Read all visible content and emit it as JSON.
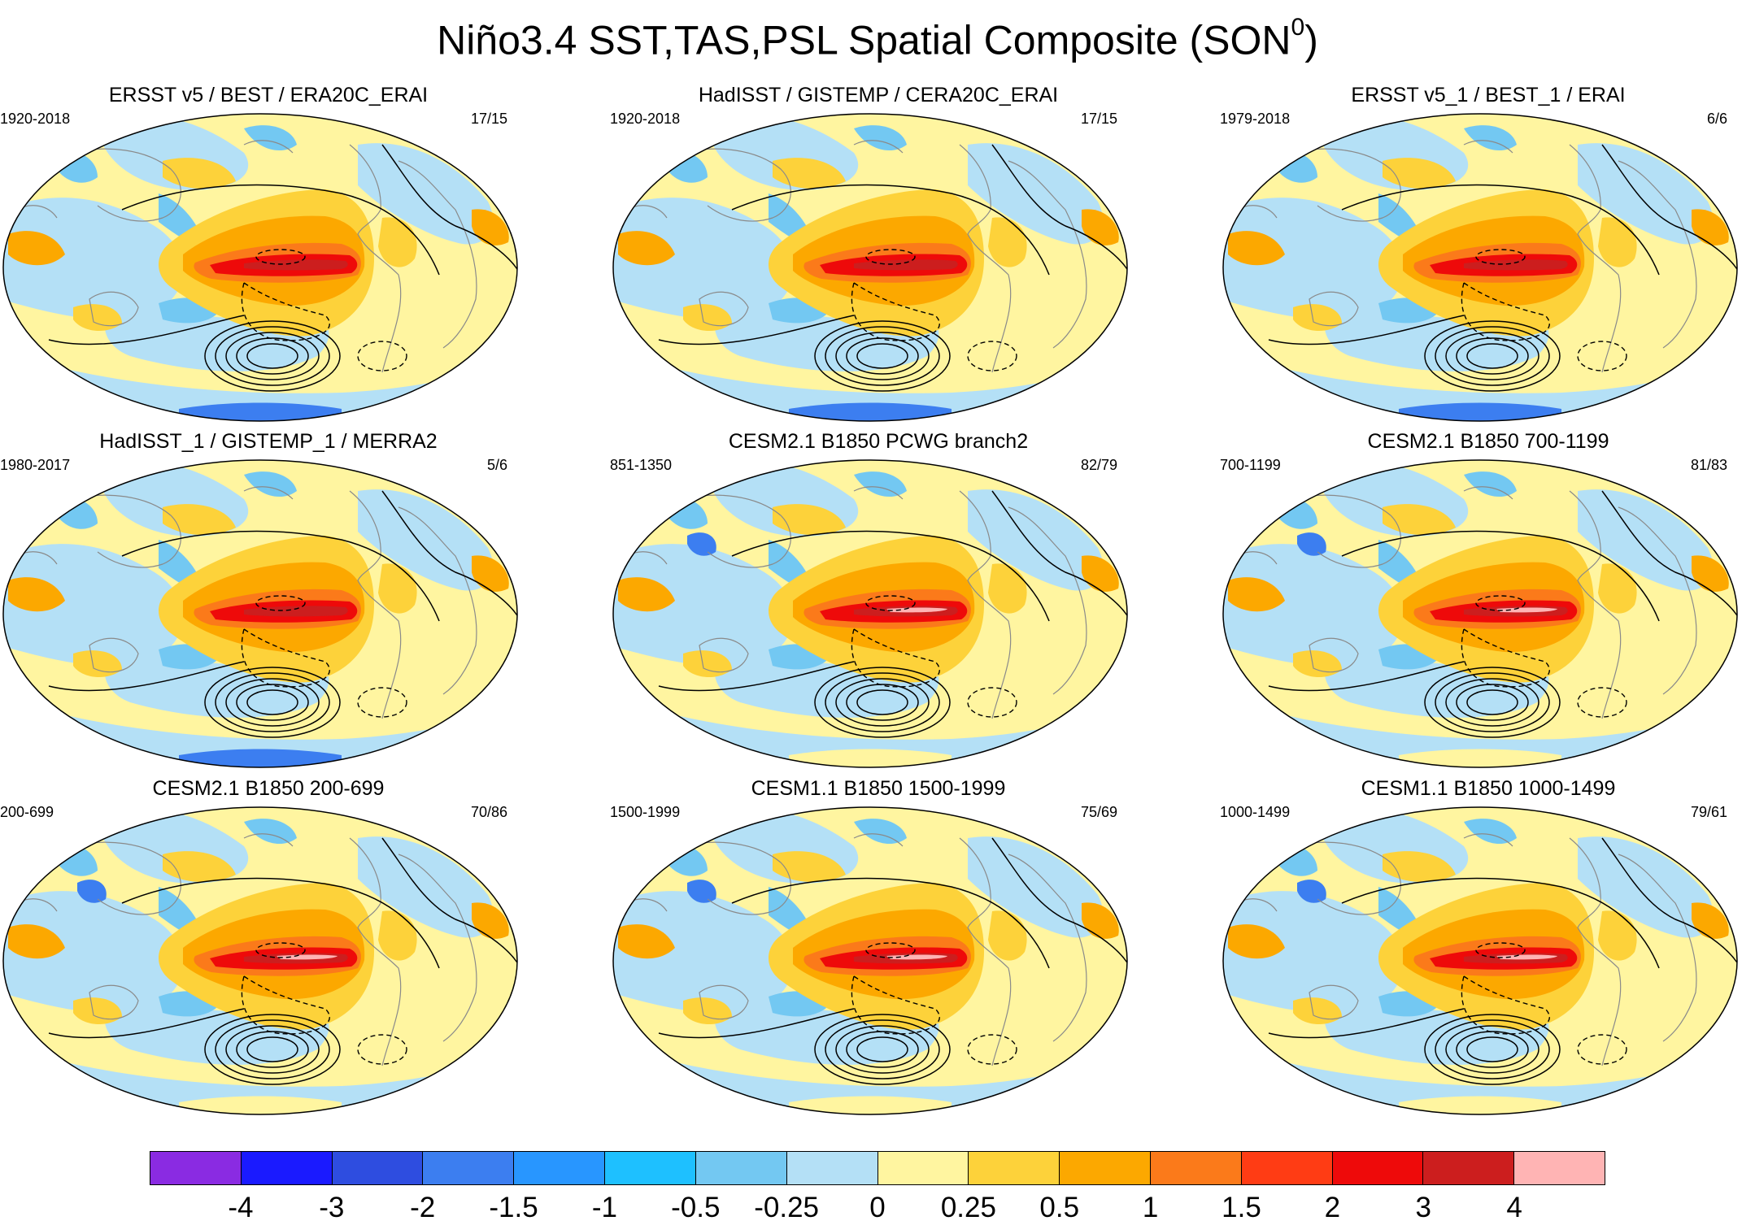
{
  "title": {
    "main": "Niño3.4 SST,TAS,PSL Spatial Composite (SON",
    "superscript": "0",
    "close": ")"
  },
  "panels": [
    {
      "title": "ERSST v5 / BEST / ERA20C_ERAI",
      "period": "1920-2018",
      "count": "17/15",
      "variant": "obs"
    },
    {
      "title": "HadISST / GISTEMP / CERA20C_ERAI",
      "period": "1920-2018",
      "count": "17/15",
      "variant": "obs"
    },
    {
      "title": "ERSST v5_1 / BEST_1 / ERAI",
      "period": "1979-2018",
      "count": "6/6",
      "variant": "obs"
    },
    {
      "title": "HadISST_1 / GISTEMP_1 / MERRA2",
      "period": "1980-2017",
      "count": "5/6",
      "variant": "obs"
    },
    {
      "title": "CESM2.1 B1850 PCWG branch2",
      "period": "851-1350",
      "count": "82/79",
      "variant": "model"
    },
    {
      "title": "CESM2.1 B1850 700-1199",
      "period": "700-1199",
      "count": "81/83",
      "variant": "model"
    },
    {
      "title": "CESM2.1 B1850 200-699",
      "period": "200-699",
      "count": "70/86",
      "variant": "model"
    },
    {
      "title": "CESM1.1 B1850 1500-1999",
      "period": "1500-1999",
      "count": "75/69",
      "variant": "model"
    },
    {
      "title": "CESM1.1 B1850 1000-1499",
      "period": "1000-1499",
      "count": "79/61",
      "variant": "model"
    }
  ],
  "colorbar": {
    "colors": [
      "#8a2be2",
      "#1a1aff",
      "#2e4de0",
      "#3c7ef0",
      "#2896ff",
      "#1ec0ff",
      "#73c8f2",
      "#b4e0f6",
      "#fff5a0",
      "#fdd23a",
      "#fca800",
      "#fb7a1a",
      "#ff3c14",
      "#ee0a0a",
      "#cc1e1e",
      "#ffb4b4"
    ],
    "labels": [
      "-4",
      "-3",
      "-2",
      "-1.5",
      "-1",
      "-0.5",
      "-0.25",
      "0",
      "0.25",
      "0.5",
      "1",
      "1.5",
      "2",
      "3",
      "4"
    ]
  }
}
